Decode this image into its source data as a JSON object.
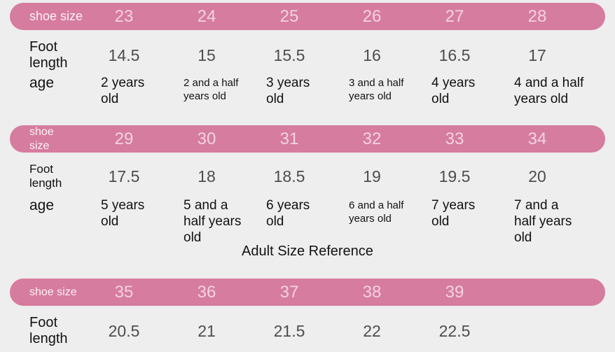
{
  "colors": {
    "background": "#eeeeee",
    "pill": "#d67c9e",
    "pill_label": "#fbf2f6",
    "pill_number": "#f3d3e1",
    "foot_value": "#4d4d4d",
    "text": "#121212"
  },
  "adult_title": "Adult Size Reference",
  "sections": [
    {
      "header_label": "shoe size",
      "sizes": [
        "23",
        "24",
        "25",
        "26",
        "27",
        "28"
      ],
      "foot_label": "Foot length",
      "foot_lengths": [
        "14.5",
        "15",
        "15.5",
        "16",
        "16.5",
        "17"
      ],
      "age_label": "age",
      "ages": [
        "2 years\nold",
        "2 and a half\nyears old",
        "3 years\nold",
        "3 and a half\nyears old",
        "4 years\nold",
        "4 and a half\nyears old"
      ]
    },
    {
      "header_label": "shoe size",
      "sizes": [
        "29",
        "30",
        "31",
        "32",
        "33",
        "34"
      ],
      "foot_label": "Foot length",
      "foot_lengths": [
        "17.5",
        "18",
        "18.5",
        "19",
        "19.5",
        "20"
      ],
      "age_label": "age",
      "ages": [
        "5 years\nold",
        "5 and a\nhalf years\nold",
        "6 years\nold",
        "6 and a half\nyears old",
        "7 years\nold",
        "7 and a\nhalf years\nold"
      ]
    },
    {
      "header_label": "shoe size",
      "sizes": [
        "35",
        "36",
        "37",
        "38",
        "39"
      ],
      "foot_label": "Foot length",
      "foot_lengths": [
        "20.5",
        "21",
        "21.5",
        "22",
        "22.5"
      ]
    }
  ],
  "chart_data": [
    {
      "type": "table",
      "title": "Kids size reference (23-28)",
      "columns": [
        "shoe size",
        "23",
        "24",
        "25",
        "26",
        "27",
        "28"
      ],
      "rows": [
        [
          "Foot length",
          "14.5",
          "15",
          "15.5",
          "16",
          "16.5",
          "17"
        ],
        [
          "age",
          "2 years old",
          "2 and a half years old",
          "3 years old",
          "3 and a half years old",
          "4 years old",
          "4 and a half years old"
        ]
      ]
    },
    {
      "type": "table",
      "title": "Kids size reference (29-34)",
      "columns": [
        "shoe size",
        "29",
        "30",
        "31",
        "32",
        "33",
        "34"
      ],
      "rows": [
        [
          "Foot length",
          "17.5",
          "18",
          "18.5",
          "19",
          "19.5",
          "20"
        ],
        [
          "age",
          "5 years old",
          "5 and a half years old",
          "6 years old",
          "6 and a half years old",
          "7 years old",
          "7 and a half years old"
        ]
      ]
    },
    {
      "type": "table",
      "title": "Adult Size Reference",
      "columns": [
        "shoe size",
        "35",
        "36",
        "37",
        "38",
        "39"
      ],
      "rows": [
        [
          "Foot length",
          "20.5",
          "21",
          "21.5",
          "22",
          "22.5"
        ]
      ]
    }
  ]
}
